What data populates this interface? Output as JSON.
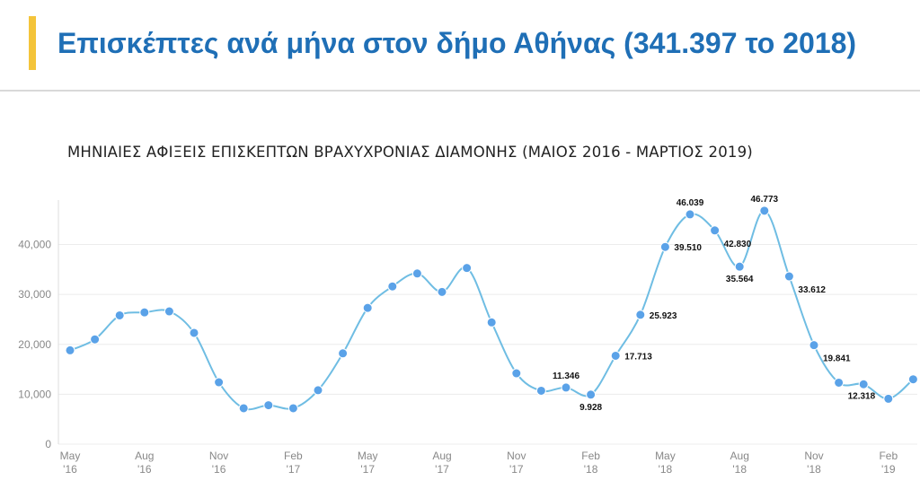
{
  "header": {
    "title": "Επισκέπτες ανά μήνα στον δήμο Αθήνας (341.397 το 2018)",
    "accent_color": "#f4c43a",
    "title_color": "#1f6fb6"
  },
  "chart_data": {
    "type": "line",
    "title": "ΜΗΝΙΑΙΕΣ ΑΦΙΞΕΙΣ ΕΠΙΣΚΕΠΤΩΝ ΒΡΑΧΥΧΡΟΝΙΑΣ ΔΙΑΜΟΝΗΣ (ΜΑΙΟΣ 2016 - ΜΑΡΤΙΟΣ 2019)",
    "xlabel": "",
    "ylabel": "",
    "ylim": [
      0,
      48000
    ],
    "grid": true,
    "line_color": "#6fbde3",
    "marker_color": "#5aa2e8",
    "y_ticks": [
      "0",
      "10,000",
      "20,000",
      "30,000",
      "40,000"
    ],
    "x_ticks": [
      {
        "month": "May",
        "year": "'16"
      },
      {
        "month": "Aug",
        "year": "'16"
      },
      {
        "month": "Nov",
        "year": "'16"
      },
      {
        "month": "Feb",
        "year": "'17"
      },
      {
        "month": "May",
        "year": "'17"
      },
      {
        "month": "Aug",
        "year": "'17"
      },
      {
        "month": "Nov",
        "year": "'17"
      },
      {
        "month": "Feb",
        "year": "'18"
      },
      {
        "month": "May",
        "year": "'18"
      },
      {
        "month": "Aug",
        "year": "'18"
      },
      {
        "month": "Nov",
        "year": "'18"
      },
      {
        "month": "Feb",
        "year": "'19"
      }
    ],
    "x": [
      "May 2016",
      "Jun 2016",
      "Jul 2016",
      "Aug 2016",
      "Sep 2016",
      "Oct 2016",
      "Nov 2016",
      "Dec 2016",
      "Jan 2017",
      "Feb 2017",
      "Mar 2017",
      "Apr 2017",
      "May 2017",
      "Jun 2017",
      "Jul 2017",
      "Aug 2017",
      "Sep 2017",
      "Oct 2017",
      "Nov 2017",
      "Dec 2017",
      "Jan 2018",
      "Feb 2018",
      "Mar 2018",
      "Apr 2018",
      "May 2018",
      "Jun 2018",
      "Jul 2018",
      "Aug 2018",
      "Sep 2018",
      "Oct 2018",
      "Nov 2018",
      "Dec 2018",
      "Jan 2019",
      "Feb 2019",
      "Mar 2019"
    ],
    "series": [
      {
        "values": [
          18800,
          21000,
          25800,
          26400,
          26600,
          22300,
          12400,
          7200,
          7800,
          7200,
          10800,
          18200,
          27300,
          31600,
          34200,
          30500,
          35300,
          24400,
          14200,
          10700,
          11346,
          9928,
          17713,
          25923,
          39510,
          46039,
          42830,
          35564,
          46773,
          33612,
          19841,
          12318,
          12000,
          9100,
          13000
        ],
        "labels": [
          "",
          "",
          "",
          "",
          "",
          "",
          "",
          "",
          "",
          "",
          "",
          "",
          "",
          "",
          "",
          "",
          "",
          "",
          "",
          "",
          "11.346",
          "9.928",
          "17.713",
          "25.923",
          "39.510",
          "46.039",
          "42.830",
          "35.564",
          "46.773",
          "33.612",
          "19.841",
          "12.318",
          "",
          "",
          ""
        ]
      }
    ]
  }
}
